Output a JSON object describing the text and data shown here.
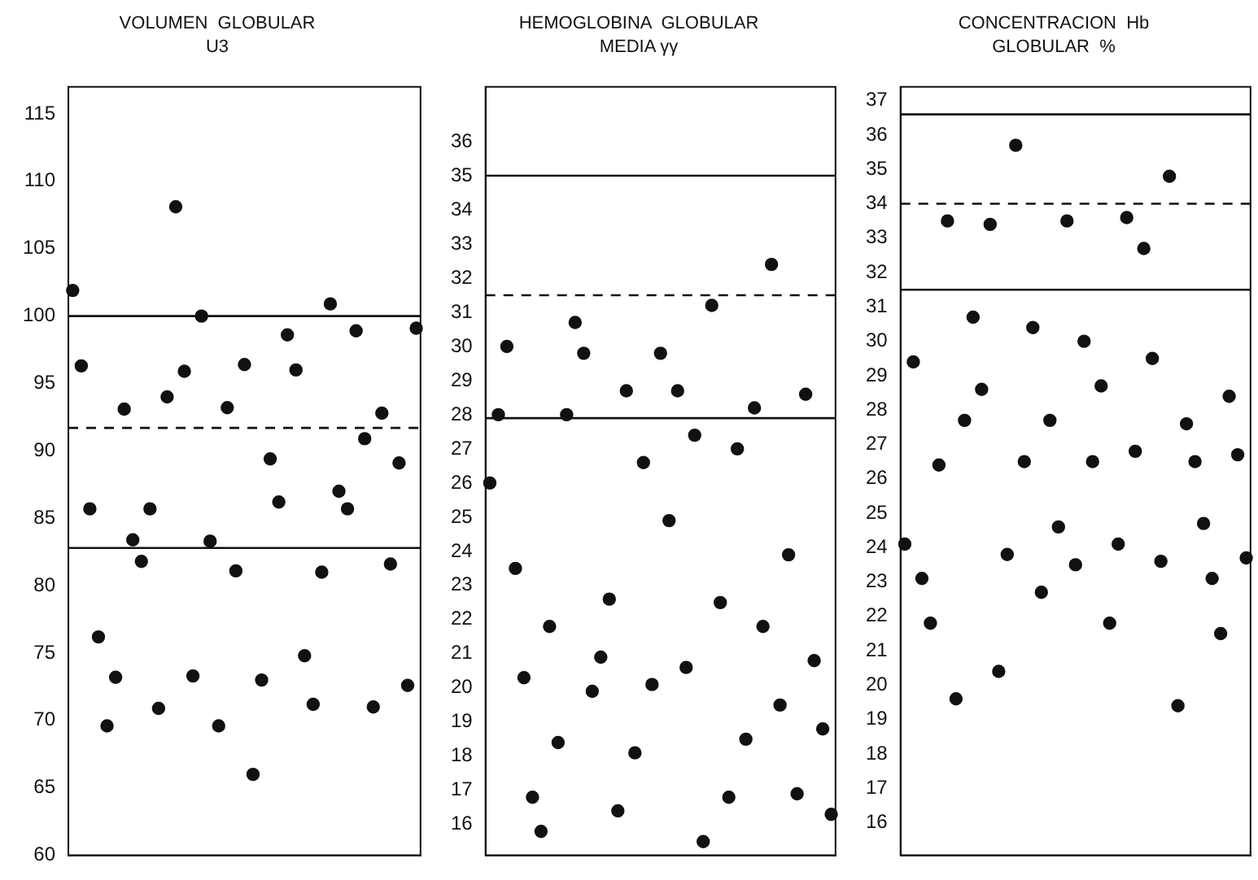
{
  "chart_data": [
    {
      "type": "scatter",
      "title": "VOLUMEN  GLOBULAR",
      "subtitle": "U3",
      "categories": [
        null,
        null,
        null,
        null,
        null,
        null,
        null,
        null,
        null,
        null,
        null,
        null,
        null,
        null,
        null,
        null,
        null,
        null,
        null,
        null,
        null,
        null,
        null,
        null,
        null,
        null,
        null,
        null,
        null,
        null,
        null,
        null,
        null,
        null,
        null,
        null,
        null,
        null,
        null,
        null,
        null
      ],
      "series": [
        {
          "color": "#111111",
          "values": [
            101.9,
            96.3,
            85.7,
            76.2,
            69.6,
            73.2,
            93.1,
            83.4,
            81.8,
            85.7,
            70.9,
            94.0,
            108.1,
            95.9,
            73.3,
            100.0,
            83.3,
            69.6,
            93.2,
            81.1,
            96.4,
            66.0,
            73.0,
            89.4,
            86.2,
            98.6,
            96.0,
            74.8,
            71.2,
            81.0,
            100.9,
            87.0,
            85.7,
            98.9,
            90.9,
            71.0,
            92.8,
            81.6,
            89.1,
            72.6,
            99.1
          ]
        }
      ],
      "ylim": [
        60,
        117
      ],
      "yticks": [
        60,
        65,
        70,
        75,
        80,
        85,
        90,
        95,
        100,
        105,
        110,
        115
      ],
      "ref_lines": [
        {
          "axis": "y",
          "value": 100,
          "line_style": "solid"
        },
        {
          "axis": "y",
          "value": 91.7,
          "line_style": "dashed"
        },
        {
          "axis": "y",
          "value": 82.8,
          "line_style": "solid"
        }
      ],
      "grid": false,
      "legend": false,
      "marker": "circle",
      "tick_labels": "y"
    },
    {
      "type": "scatter",
      "title": "HEMOGLOBINA  GLOBULAR",
      "subtitle": "MEDIA γγ",
      "categories": [
        null,
        null,
        null,
        null,
        null,
        null,
        null,
        null,
        null,
        null,
        null,
        null,
        null,
        null,
        null,
        null,
        null,
        null,
        null,
        null,
        null,
        null,
        null,
        null,
        null,
        null,
        null,
        null,
        null,
        null,
        null,
        null,
        null,
        null,
        null,
        null,
        null,
        null,
        null,
        null,
        null
      ],
      "series": [
        {
          "color": "#111111",
          "values": [
            26.0,
            28.0,
            30.0,
            23.5,
            20.3,
            16.8,
            15.8,
            21.8,
            18.4,
            28.0,
            30.7,
            29.8,
            19.9,
            20.9,
            22.6,
            16.4,
            28.7,
            18.1,
            26.6,
            20.1,
            29.8,
            24.9,
            28.7,
            20.6,
            27.4,
            15.5,
            31.2,
            22.5,
            16.8,
            27.0,
            18.5,
            28.2,
            21.8,
            32.4,
            19.5,
            23.9,
            16.9,
            28.6,
            20.8,
            18.8,
            16.3
          ]
        }
      ],
      "ylim": [
        15.1,
        37.6
      ],
      "yticks": [
        16,
        17,
        18,
        19,
        20,
        21,
        22,
        23,
        24,
        25,
        26,
        27,
        28,
        29,
        30,
        31,
        32,
        33,
        34,
        35,
        36
      ],
      "ref_lines": [
        {
          "axis": "y",
          "value": 35,
          "line_style": "solid"
        },
        {
          "axis": "y",
          "value": 31.5,
          "line_style": "dashed"
        },
        {
          "axis": "y",
          "value": 27.9,
          "line_style": "solid"
        }
      ],
      "grid": false,
      "legend": false,
      "marker": "circle",
      "tick_labels": "y"
    },
    {
      "type": "scatter",
      "title": "CONCENTRACION  Hb",
      "subtitle": "GLOBULAR  %",
      "categories": [
        null,
        null,
        null,
        null,
        null,
        null,
        null,
        null,
        null,
        null,
        null,
        null,
        null,
        null,
        null,
        null,
        null,
        null,
        null,
        null,
        null,
        null,
        null,
        null,
        null,
        null,
        null,
        null,
        null,
        null,
        null,
        null,
        null,
        null,
        null,
        null,
        null,
        null,
        null,
        null,
        null
      ],
      "series": [
        {
          "color": "#111111",
          "values": [
            24.1,
            29.4,
            23.1,
            21.8,
            26.4,
            33.5,
            19.6,
            27.7,
            30.7,
            28.6,
            33.4,
            20.4,
            23.8,
            35.7,
            26.5,
            30.4,
            22.7,
            27.7,
            24.6,
            33.5,
            23.5,
            30.0,
            26.5,
            28.7,
            21.8,
            24.1,
            33.6,
            26.8,
            32.7,
            29.5,
            23.6,
            34.8,
            19.4,
            27.6,
            26.5,
            24.7,
            23.1,
            21.5,
            28.4,
            26.7,
            23.7
          ]
        }
      ],
      "ylim": [
        15.05,
        37.4
      ],
      "yticks": [
        16,
        17,
        18,
        19,
        20,
        21,
        22,
        23,
        24,
        25,
        26,
        27,
        28,
        29,
        30,
        31,
        32,
        33,
        34,
        35,
        36,
        37
      ],
      "ref_lines": [
        {
          "axis": "y",
          "value": 36.6,
          "line_style": "solid"
        },
        {
          "axis": "y",
          "value": 34.0,
          "line_style": "dashed"
        },
        {
          "axis": "y",
          "value": 31.5,
          "line_style": "solid"
        }
      ],
      "grid": false,
      "legend": false,
      "marker": "circle",
      "tick_labels": "y"
    }
  ]
}
